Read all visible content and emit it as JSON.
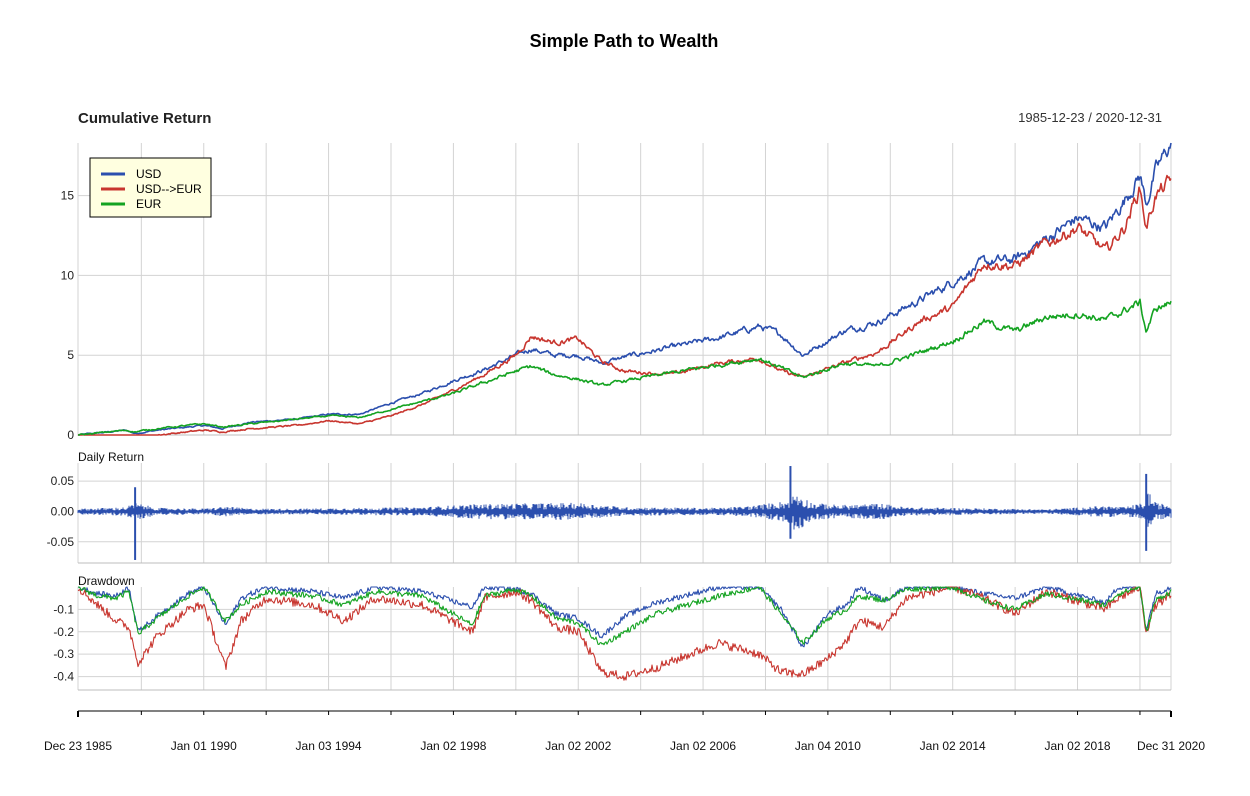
{
  "title": "Simple Path to Wealth",
  "date_range": "1985-12-23 / 2020-12-31",
  "colors": {
    "USD": "#2b4fae",
    "USD-->EUR": "#c8362f",
    "EUR": "#14a321"
  },
  "chart_data": [
    {
      "type": "line",
      "title": "Cumulative Return",
      "ylim": [
        0,
        18.3
      ],
      "yticks": [
        0,
        5,
        10,
        15
      ],
      "ytick_labels": [
        "0",
        "5",
        "10",
        "15"
      ],
      "grid": true,
      "legend": {
        "position": "top-left",
        "entries": [
          "USD",
          "USD-->EUR",
          "EUR"
        ]
      },
      "series": [
        {
          "name": "USD",
          "x": [
            1985.97,
            1987.5,
            1987.8,
            1988.5,
            1990.0,
            1990.6,
            1991.5,
            1993.0,
            1994.0,
            1995.0,
            1996.0,
            1997.0,
            1998.0,
            1999.0,
            2000.0,
            2000.5,
            2001.2,
            2002.0,
            2002.75,
            2003.5,
            2005.0,
            2006.5,
            2007.8,
            2008.5,
            2009.2,
            2010.5,
            2011.6,
            2013.0,
            2014.0,
            2015.0,
            2016.0,
            2017.0,
            2018.0,
            2018.9,
            2019.5,
            2020.0,
            2020.2,
            2020.5,
            2020.995
          ],
          "values": [
            0.0,
            0.3,
            0.1,
            0.3,
            0.6,
            0.4,
            0.8,
            1.0,
            1.3,
            1.3,
            2.0,
            2.6,
            3.4,
            4.1,
            5.0,
            5.4,
            5.0,
            5.0,
            4.5,
            4.9,
            5.5,
            6.1,
            6.8,
            6.3,
            5.0,
            6.5,
            7.1,
            8.5,
            9.6,
            10.8,
            11.0,
            12.3,
            13.6,
            13.0,
            14.7,
            16.3,
            14.5,
            16.5,
            18.3
          ]
        },
        {
          "name": "USD-->EUR",
          "x": [
            1985.97,
            1987.5,
            1987.8,
            1988.5,
            1990.0,
            1990.6,
            1991.5,
            1993.0,
            1994.0,
            1995.0,
            1996.0,
            1997.0,
            1998.0,
            1999.0,
            2000.0,
            2000.5,
            2001.2,
            2002.0,
            2002.75,
            2003.5,
            2005.0,
            2006.5,
            2007.8,
            2008.5,
            2009.2,
            2010.5,
            2011.6,
            2013.0,
            2014.0,
            2015.0,
            2016.0,
            2017.0,
            2018.0,
            2018.9,
            2019.5,
            2020.0,
            2020.2,
            2020.5,
            2020.995
          ],
          "values": [
            0.0,
            -0.2,
            -0.2,
            0.0,
            0.3,
            0.2,
            0.4,
            0.6,
            0.9,
            0.7,
            1.2,
            1.9,
            2.8,
            3.8,
            5.0,
            6.2,
            5.8,
            6.0,
            4.6,
            4.0,
            3.8,
            4.5,
            4.8,
            4.0,
            3.6,
            4.5,
            5.2,
            7.2,
            8.0,
            10.8,
            10.6,
            12.0,
            13.0,
            11.5,
            13.0,
            15.5,
            13.0,
            15.0,
            15.9
          ]
        },
        {
          "name": "EUR",
          "x": [
            1985.97,
            1987.5,
            1987.8,
            1988.5,
            1990.0,
            1990.6,
            1991.5,
            1993.0,
            1994.0,
            1995.0,
            1996.0,
            1997.0,
            1998.0,
            1999.0,
            2000.0,
            2000.5,
            2001.2,
            2002.0,
            2002.75,
            2003.5,
            2005.0,
            2006.5,
            2007.8,
            2008.5,
            2009.2,
            2010.5,
            2011.6,
            2013.0,
            2014.0,
            2015.0,
            2016.0,
            2017.0,
            2018.0,
            2018.9,
            2019.5,
            2020.0,
            2020.2,
            2020.5,
            2020.995
          ],
          "values": [
            0.0,
            0.3,
            0.2,
            0.4,
            0.7,
            0.5,
            0.7,
            1.0,
            1.2,
            1.1,
            1.6,
            2.1,
            2.6,
            3.3,
            4.0,
            4.3,
            3.8,
            3.5,
            3.1,
            3.4,
            3.9,
            4.4,
            4.8,
            4.2,
            3.6,
            4.5,
            4.3,
            5.2,
            5.9,
            7.1,
            6.5,
            7.4,
            7.6,
            7.2,
            7.8,
            8.3,
            6.5,
            7.9,
            8.3
          ]
        }
      ]
    },
    {
      "type": "bar",
      "title": "Daily Return",
      "series_name": "USD",
      "ylim": [
        -0.085,
        0.08
      ],
      "yticks": [
        0.05,
        0.0,
        -0.05
      ],
      "ytick_labels": [
        "0.05",
        "0.00",
        "-0.05"
      ],
      "grid": true,
      "volatility_x": [
        1985.97,
        1987.5,
        1987.8,
        1988.5,
        1990.0,
        1990.7,
        1991.5,
        1993.0,
        1997.0,
        1998.6,
        2000.0,
        2002.0,
        2002.7,
        2003.5,
        2006.5,
        2007.6,
        2008.7,
        2008.95,
        2009.5,
        2010.4,
        2011.7,
        2012.5,
        2017.0,
        2018.9,
        2019.5,
        2020.1,
        2020.25,
        2020.5,
        2020.995
      ],
      "volatility_values": [
        0.004,
        0.006,
        0.012,
        0.005,
        0.004,
        0.007,
        0.004,
        0.004,
        0.006,
        0.01,
        0.011,
        0.012,
        0.009,
        0.006,
        0.005,
        0.008,
        0.015,
        0.028,
        0.012,
        0.009,
        0.011,
        0.006,
        0.003,
        0.008,
        0.006,
        0.012,
        0.03,
        0.012,
        0.009
      ],
      "spikes": [
        {
          "x": 1987.8,
          "value": 0.04
        },
        {
          "x": 1987.8,
          "value": -0.08
        },
        {
          "x": 2008.8,
          "value": 0.075
        },
        {
          "x": 2008.8,
          "value": -0.045
        },
        {
          "x": 2020.2,
          "value": 0.062
        },
        {
          "x": 2020.2,
          "value": -0.065
        }
      ]
    },
    {
      "type": "line",
      "title": "Drawdown",
      "ylim": [
        -0.46,
        0.0
      ],
      "yticks": [
        -0.1,
        -0.2,
        -0.3,
        -0.4
      ],
      "ytick_labels": [
        "-0.1",
        "-0.2",
        "-0.3",
        "-0.4"
      ],
      "grid": true,
      "series": [
        {
          "name": "USD",
          "x": [
            1985.97,
            1986.6,
            1987.2,
            1987.6,
            1987.9,
            1988.5,
            1989.5,
            1990.0,
            1990.7,
            1991.2,
            1992.0,
            1993.5,
            1994.5,
            1995.5,
            1997.0,
            1998.6,
            1999.0,
            2000.0,
            2000.5,
            2001.3,
            2002.0,
            2002.75,
            2003.5,
            2004.5,
            2006.5,
            2007.8,
            2008.5,
            2009.2,
            2010.0,
            2010.6,
            2011.0,
            2011.8,
            2012.5,
            2014.0,
            2015.0,
            2016.0,
            2017.0,
            2018.9,
            2019.3,
            2020.0,
            2020.2,
            2020.5,
            2020.995
          ],
          "values": [
            0.0,
            -0.03,
            -0.04,
            0.0,
            -0.2,
            -0.13,
            -0.03,
            0.0,
            -0.17,
            -0.05,
            0.0,
            -0.02,
            -0.05,
            0.0,
            -0.02,
            -0.09,
            0.0,
            -0.01,
            -0.03,
            -0.12,
            -0.14,
            -0.22,
            -0.13,
            -0.07,
            0.0,
            0.0,
            -0.1,
            -0.27,
            -0.12,
            -0.08,
            0.0,
            -0.06,
            0.0,
            0.0,
            -0.03,
            -0.05,
            0.0,
            -0.07,
            0.0,
            0.0,
            -0.19,
            -0.03,
            0.0
          ]
        },
        {
          "name": "USD-->EUR",
          "x": [
            1985.97,
            1986.6,
            1987.2,
            1987.6,
            1987.9,
            1988.5,
            1989.5,
            1990.0,
            1990.7,
            1991.2,
            1992.0,
            1993.5,
            1994.5,
            1995.5,
            1997.0,
            1998.6,
            1999.0,
            2000.0,
            2000.5,
            2001.3,
            2002.0,
            2002.75,
            2003.5,
            2004.5,
            2006.5,
            2007.8,
            2008.5,
            2009.2,
            2010.0,
            2010.6,
            2011.0,
            2011.8,
            2012.5,
            2014.0,
            2015.0,
            2016.0,
            2017.0,
            2018.9,
            2019.3,
            2020.0,
            2020.2,
            2020.5,
            2020.995
          ],
          "values": [
            0.0,
            -0.08,
            -0.15,
            -0.18,
            -0.34,
            -0.22,
            -0.1,
            -0.08,
            -0.36,
            -0.15,
            -0.05,
            -0.08,
            -0.15,
            -0.05,
            -0.08,
            -0.2,
            -0.05,
            -0.02,
            -0.06,
            -0.18,
            -0.2,
            -0.38,
            -0.4,
            -0.36,
            -0.25,
            -0.3,
            -0.38,
            -0.39,
            -0.32,
            -0.24,
            -0.15,
            -0.18,
            -0.05,
            0.0,
            -0.05,
            -0.12,
            -0.02,
            -0.1,
            -0.05,
            0.0,
            -0.2,
            -0.08,
            -0.04
          ]
        },
        {
          "name": "EUR",
          "x": [
            1985.97,
            1986.6,
            1987.2,
            1987.6,
            1987.9,
            1988.5,
            1989.5,
            1990.0,
            1990.7,
            1991.2,
            1992.0,
            1993.5,
            1994.5,
            1995.5,
            1997.0,
            1998.6,
            1999.0,
            2000.0,
            2000.5,
            2001.3,
            2002.0,
            2002.75,
            2003.5,
            2004.5,
            2006.5,
            2007.8,
            2008.5,
            2009.2,
            2010.0,
            2010.6,
            2011.0,
            2011.8,
            2012.5,
            2014.0,
            2015.0,
            2016.0,
            2017.0,
            2018.9,
            2019.3,
            2020.0,
            2020.2,
            2020.5,
            2020.995
          ],
          "values": [
            0.0,
            -0.04,
            -0.05,
            -0.02,
            -0.21,
            -0.14,
            -0.04,
            0.0,
            -0.15,
            -0.08,
            -0.02,
            -0.04,
            -0.08,
            -0.02,
            -0.04,
            -0.17,
            -0.04,
            -0.01,
            -0.04,
            -0.14,
            -0.16,
            -0.26,
            -0.2,
            -0.12,
            -0.04,
            0.0,
            -0.12,
            -0.25,
            -0.14,
            -0.1,
            -0.04,
            -0.06,
            -0.01,
            0.0,
            -0.06,
            -0.1,
            -0.03,
            -0.08,
            -0.03,
            0.0,
            -0.2,
            -0.06,
            -0.02
          ]
        }
      ]
    }
  ],
  "x_axis": {
    "range": [
      1985.97,
      2020.995
    ],
    "labels": [
      {
        "x": 1985.97,
        "text": "Dec 23 1985"
      },
      {
        "x": 1990.0,
        "text": "Jan 01 1990"
      },
      {
        "x": 1994.0,
        "text": "Jan 03 1994"
      },
      {
        "x": 1998.0,
        "text": "Jan 02 1998"
      },
      {
        "x": 2002.0,
        "text": "Jan 02 2002"
      },
      {
        "x": 2006.0,
        "text": "Jan 02 2006"
      },
      {
        "x": 2010.0,
        "text": "Jan 04 2010"
      },
      {
        "x": 2014.0,
        "text": "Jan 02 2014"
      },
      {
        "x": 2018.0,
        "text": "Jan 02 2018"
      },
      {
        "x": 2020.995,
        "text": "Dec 31 2020"
      }
    ],
    "ticks": [
      1985.97,
      1988.0,
      1990.0,
      1992.0,
      1994.0,
      1996.0,
      1998.0,
      2000.0,
      2002.0,
      2004.0,
      2006.0,
      2008.0,
      2010.0,
      2012.0,
      2014.0,
      2016.0,
      2018.0,
      2020.0,
      2020.995
    ]
  }
}
